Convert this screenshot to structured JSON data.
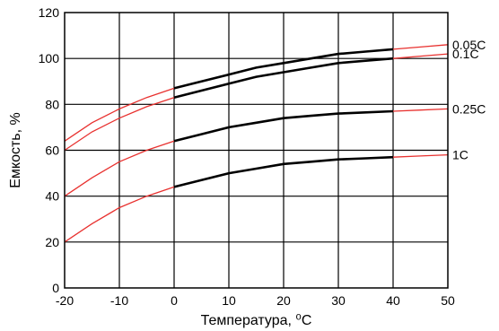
{
  "chart_data": {
    "type": "line",
    "xlabel": "Температура, ⁰С",
    "ylabel": "Емкость, %",
    "xlim": [
      -20,
      50
    ],
    "ylim": [
      0,
      120
    ],
    "xticks": [
      "-20",
      "-10",
      "0",
      "10",
      "20",
      "30",
      "40",
      "50"
    ],
    "yticks": [
      "0",
      "20",
      "40",
      "60",
      "80",
      "100",
      "120"
    ],
    "grid": true,
    "legend": "labels at right edge of curves",
    "colors": {
      "measured": "#000000",
      "extrapolated": "#e8312f",
      "grid": "#000000"
    },
    "series": [
      {
        "name": "0.05C",
        "extrapolated_low": [
          [
            -20,
            64
          ],
          [
            -15,
            72
          ],
          [
            -10,
            78
          ],
          [
            -5,
            83
          ],
          [
            0,
            87
          ]
        ],
        "measured": [
          [
            0,
            87
          ],
          [
            5,
            90
          ],
          [
            10,
            93
          ],
          [
            15,
            96
          ],
          [
            20,
            98
          ],
          [
            25,
            100
          ],
          [
            30,
            102
          ],
          [
            35,
            103
          ],
          [
            40,
            104
          ]
        ],
        "extrapolated_high": [
          [
            40,
            104
          ],
          [
            45,
            105
          ],
          [
            50,
            106
          ]
        ]
      },
      {
        "name": "0.1C",
        "extrapolated_low": [
          [
            -20,
            60
          ],
          [
            -15,
            68
          ],
          [
            -10,
            74
          ],
          [
            -5,
            79
          ],
          [
            0,
            83
          ]
        ],
        "measured": [
          [
            0,
            83
          ],
          [
            5,
            86
          ],
          [
            10,
            89
          ],
          [
            15,
            92
          ],
          [
            20,
            94
          ],
          [
            25,
            96
          ],
          [
            30,
            98
          ],
          [
            35,
            99
          ],
          [
            40,
            100
          ]
        ],
        "extrapolated_high": [
          [
            40,
            100
          ],
          [
            45,
            101
          ],
          [
            50,
            102
          ]
        ]
      },
      {
        "name": "0.25C",
        "extrapolated_low": [
          [
            -20,
            40
          ],
          [
            -15,
            48
          ],
          [
            -10,
            55
          ],
          [
            -5,
            60
          ],
          [
            0,
            64
          ]
        ],
        "measured": [
          [
            0,
            64
          ],
          [
            5,
            67
          ],
          [
            10,
            70
          ],
          [
            15,
            72
          ],
          [
            20,
            74
          ],
          [
            25,
            75
          ],
          [
            30,
            76
          ],
          [
            35,
            76.5
          ],
          [
            40,
            77
          ]
        ],
        "extrapolated_high": [
          [
            40,
            77
          ],
          [
            45,
            77.5
          ],
          [
            50,
            78
          ]
        ]
      },
      {
        "name": "1C",
        "extrapolated_low": [
          [
            -20,
            20
          ],
          [
            -15,
            28
          ],
          [
            -10,
            35
          ],
          [
            -5,
            40
          ],
          [
            0,
            44
          ]
        ],
        "measured": [
          [
            0,
            44
          ],
          [
            5,
            47
          ],
          [
            10,
            50
          ],
          [
            15,
            52
          ],
          [
            20,
            54
          ],
          [
            25,
            55
          ],
          [
            30,
            56
          ],
          [
            35,
            56.5
          ],
          [
            40,
            57
          ]
        ],
        "extrapolated_high": [
          [
            40,
            57
          ],
          [
            45,
            57.5
          ],
          [
            50,
            58
          ]
        ]
      }
    ]
  }
}
